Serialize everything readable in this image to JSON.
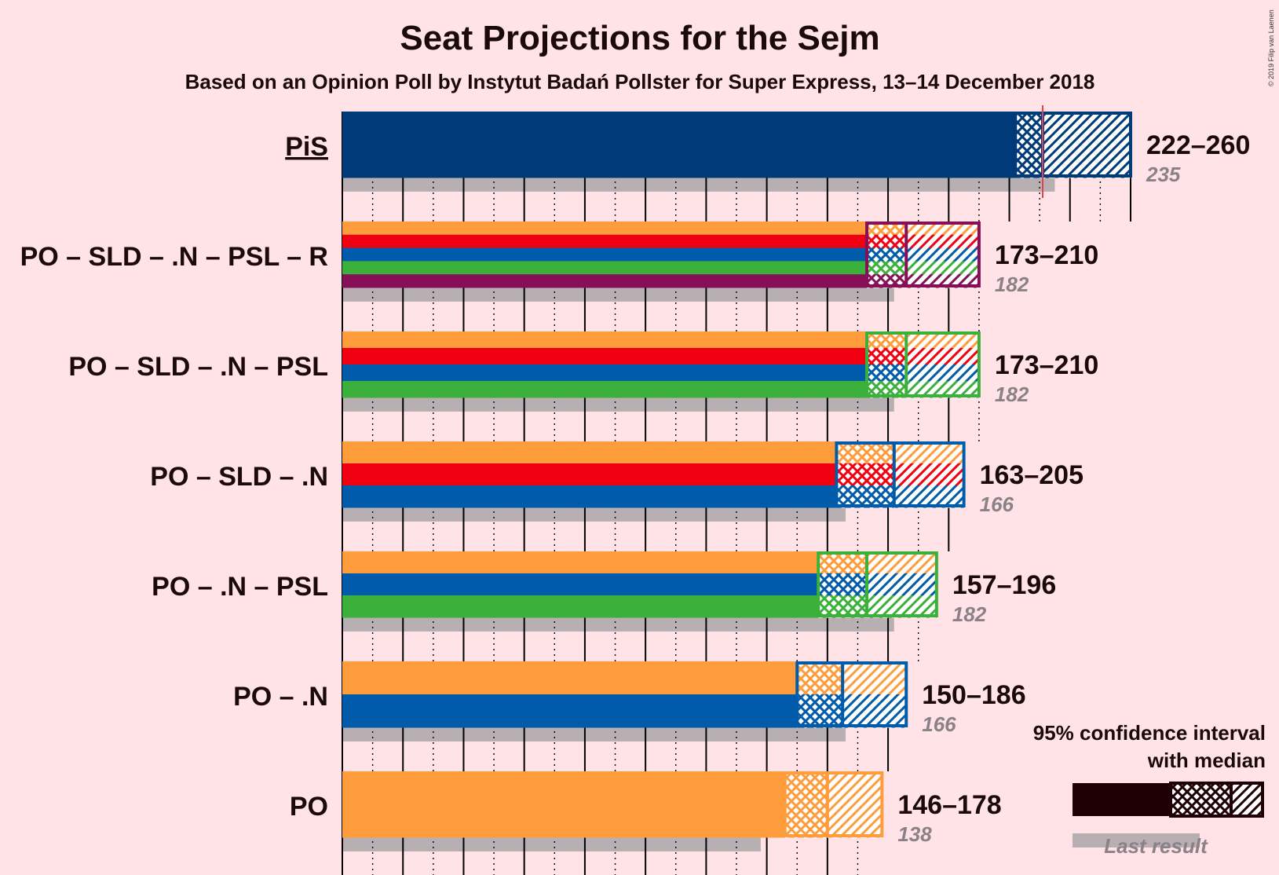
{
  "title": "Seat Projections for the Sejm",
  "subtitle": "Based on an Opinion Poll by Instytut Badań Pollster for Super Express, 13–14 December 2018",
  "copyright": "© 2019 Filip van Laenen",
  "legend": {
    "line1": "95% confidence interval",
    "line2": "with median",
    "last_result": "Last result"
  },
  "colors": {
    "background": "#FFE3E7",
    "PiS": "#003A78",
    "PO": "#FF9D3C",
    "SLD": "#F00011",
    "N": "#005CAA",
    "PSL": "#3BB13B",
    "R": "#870F57",
    "last_result": "#B8AFB2",
    "majority_line": "#E5404E",
    "legend_dark": "#1F0005"
  },
  "chart_data": {
    "type": "bar",
    "orientation": "horizontal",
    "x_unit": "seats",
    "xlim": [
      0,
      260
    ],
    "majority": 231,
    "categories": [
      "PiS",
      "PO – SLD – .N – PSL – R",
      "PO – SLD – .N – PSL",
      "PO – SLD – .N",
      "PO – .N – PSL",
      "PO – .N",
      "PO"
    ],
    "series": [
      {
        "label": "PiS",
        "underlined": true,
        "parties": [
          "PiS"
        ],
        "low": 222,
        "median": 231,
        "high": 260,
        "last": 235,
        "range_text": "222–260",
        "last_text": "235"
      },
      {
        "label": "PO – SLD – .N – PSL – R",
        "underlined": false,
        "parties": [
          "PO",
          "SLD",
          "N",
          "PSL",
          "R"
        ],
        "low": 173,
        "median": 186,
        "high": 210,
        "last": 182,
        "range_text": "173–210",
        "last_text": "182"
      },
      {
        "label": "PO – SLD – .N – PSL",
        "underlined": false,
        "parties": [
          "PO",
          "SLD",
          "N",
          "PSL"
        ],
        "low": 173,
        "median": 186,
        "high": 210,
        "last": 182,
        "range_text": "173–210",
        "last_text": "182"
      },
      {
        "label": "PO – SLD – .N",
        "underlined": false,
        "parties": [
          "PO",
          "SLD",
          "N"
        ],
        "low": 163,
        "median": 182,
        "high": 205,
        "last": 166,
        "range_text": "163–205",
        "last_text": "166"
      },
      {
        "label": "PO – .N – PSL",
        "underlined": false,
        "parties": [
          "PO",
          "N",
          "PSL"
        ],
        "low": 157,
        "median": 173,
        "high": 196,
        "last": 182,
        "range_text": "157–196",
        "last_text": "182"
      },
      {
        "label": "PO – .N",
        "underlined": false,
        "parties": [
          "PO",
          "N"
        ],
        "low": 150,
        "median": 165,
        "high": 186,
        "last": 166,
        "range_text": "150–186",
        "last_text": "166"
      },
      {
        "label": "PO",
        "underlined": false,
        "parties": [
          "PO"
        ],
        "low": 146,
        "median": 160,
        "high": 178,
        "last": 138,
        "range_text": "146–178",
        "last_text": "138"
      }
    ]
  }
}
